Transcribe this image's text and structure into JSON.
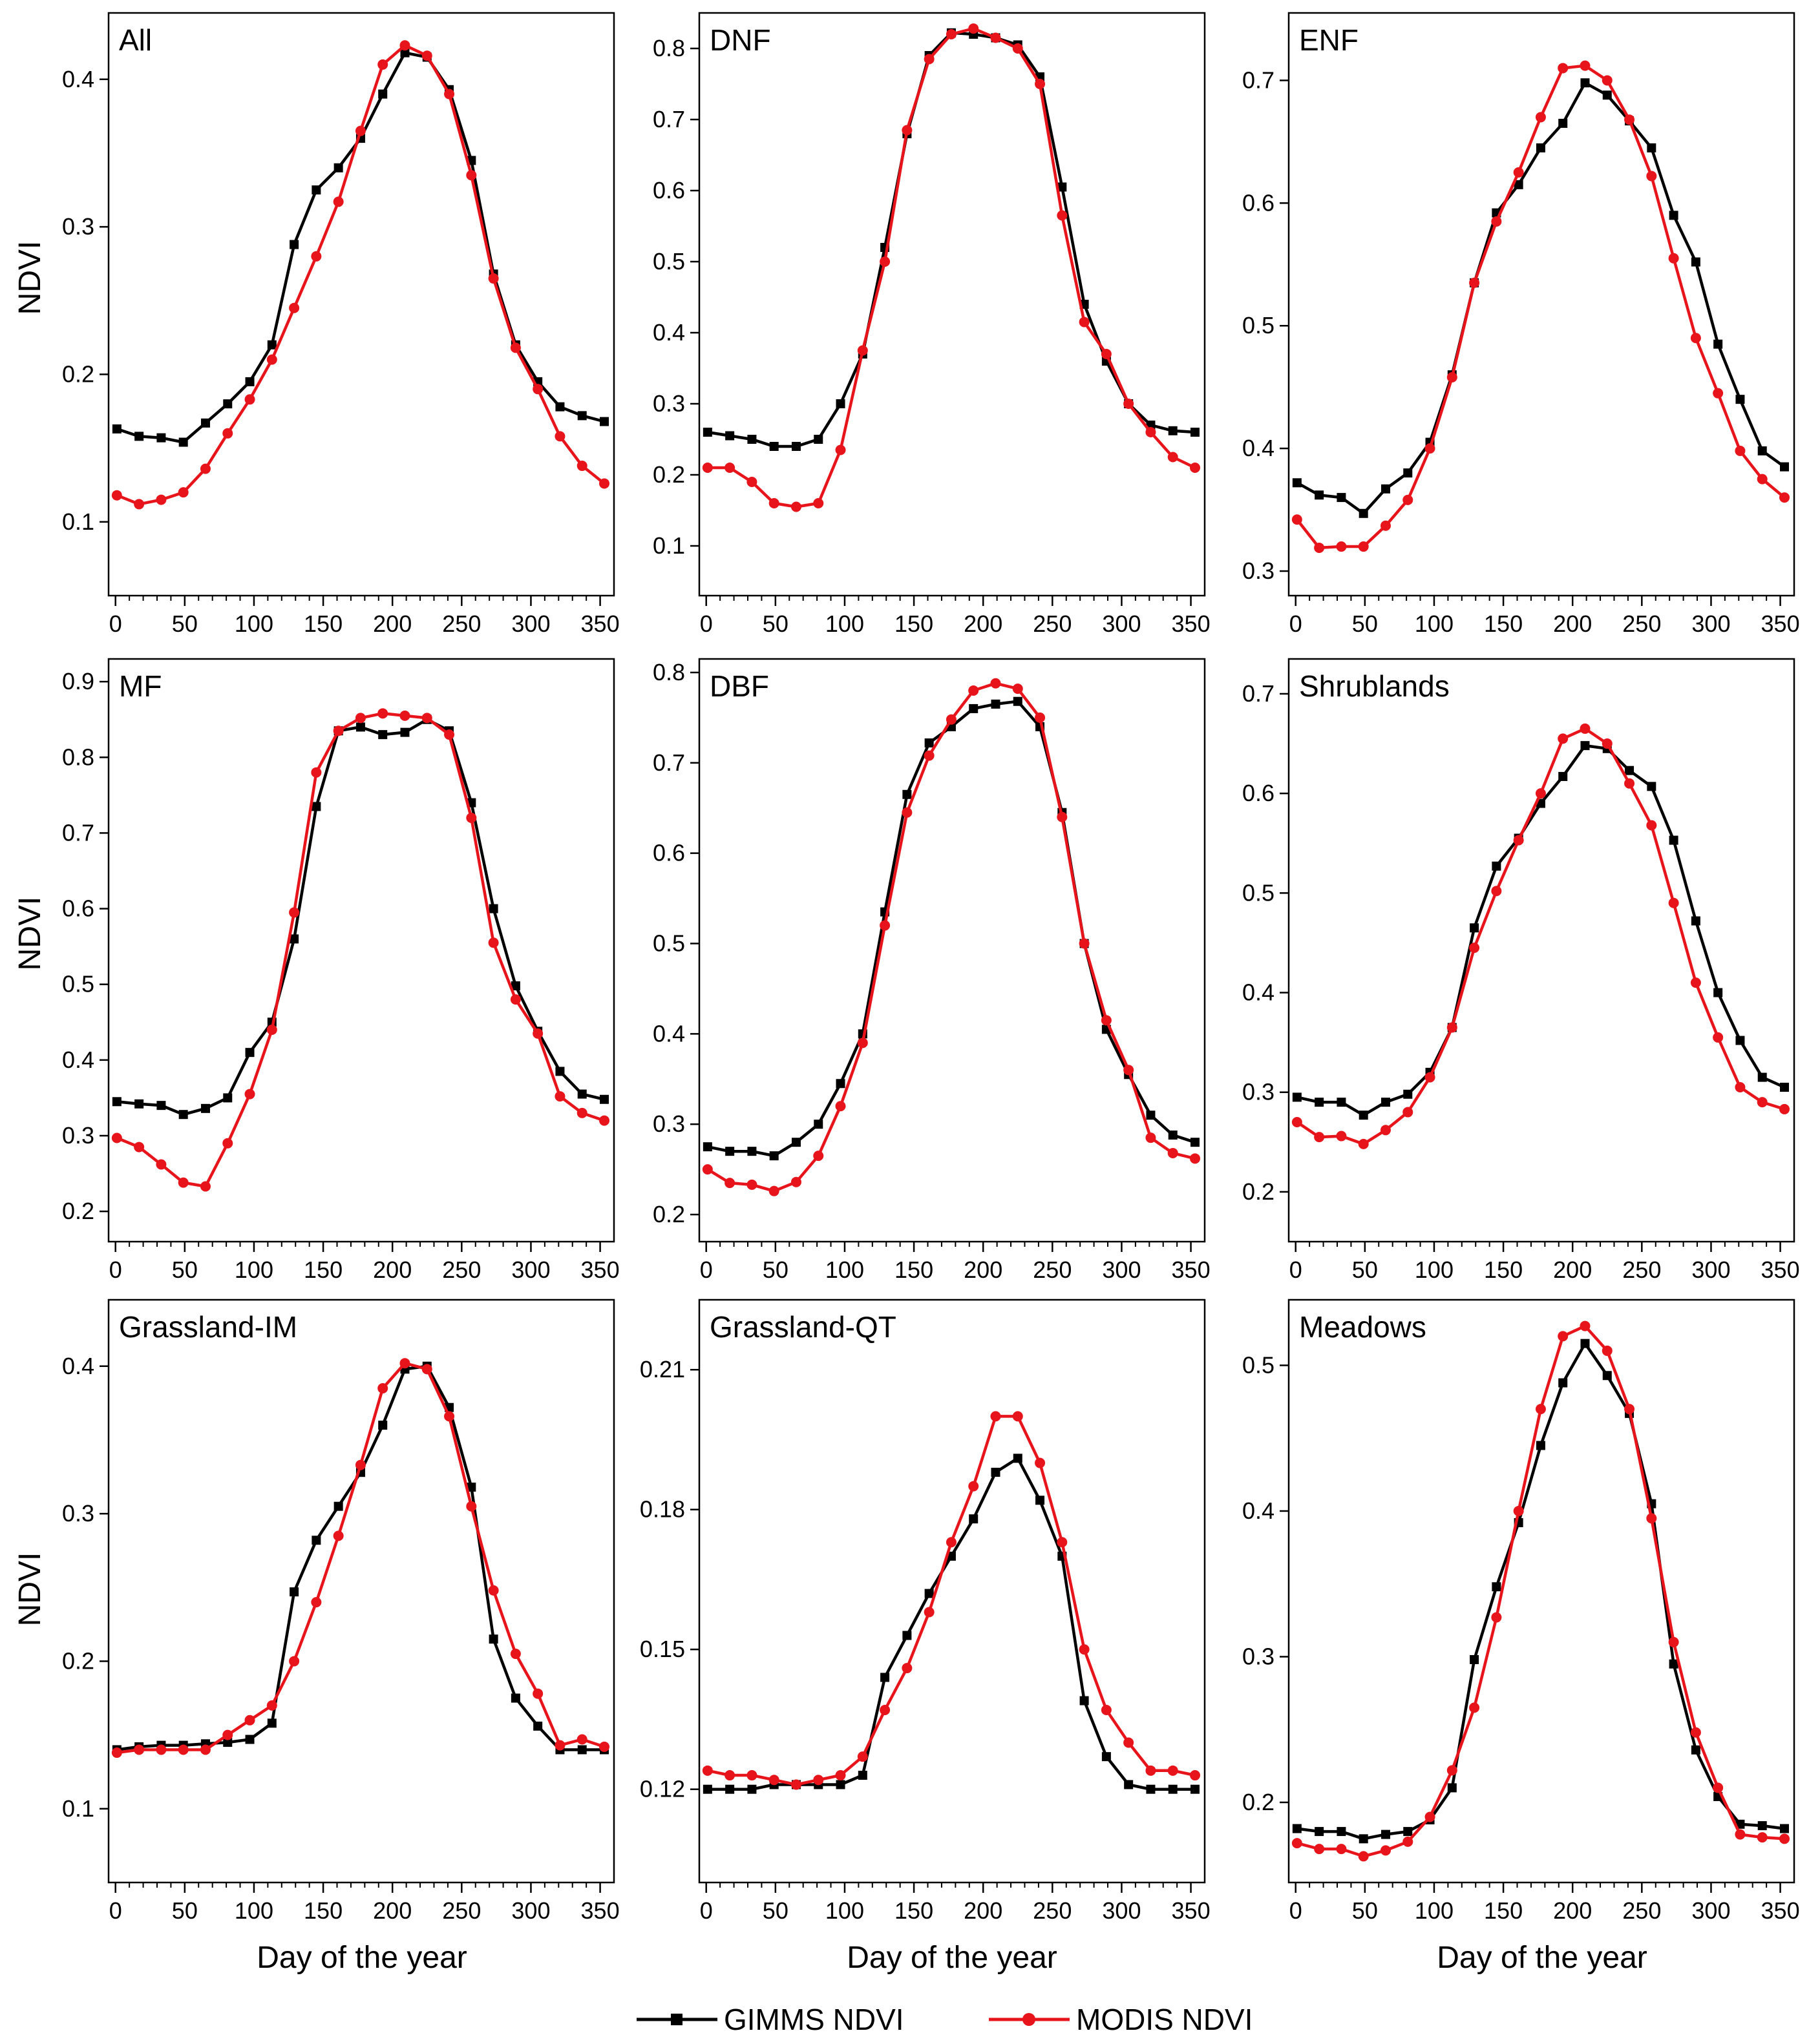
{
  "figure": {
    "x_axis_title": "Day of the year",
    "y_axis_title": "NDVI",
    "legend": [
      {
        "name": "GIMMS NDVI",
        "color": "#000000",
        "marker": "square"
      },
      {
        "name": "MODIS NDVI",
        "color": "#e8141b",
        "marker": "circle"
      }
    ]
  },
  "chart_data": [
    {
      "type": "line",
      "title": "All",
      "xlabel": "",
      "ylabel": "NDVI",
      "xlim": [
        -5,
        360
      ],
      "ylim": [
        0.05,
        0.445
      ],
      "xticks": [
        0,
        50,
        100,
        150,
        200,
        250,
        300,
        350
      ],
      "yticks": [
        0.1,
        0.2,
        0.3,
        0.4
      ],
      "ytick_labels": [
        "0.1",
        "0.2",
        "0.3",
        "0.4"
      ],
      "x": [
        1,
        17,
        33,
        49,
        65,
        81,
        97,
        113,
        129,
        145,
        161,
        177,
        193,
        209,
        225,
        241,
        257,
        273,
        289,
        305,
        321,
        337,
        353
      ],
      "series": [
        {
          "name": "GIMMS NDVI",
          "values": [
            0.163,
            0.158,
            0.157,
            0.154,
            0.167,
            0.18,
            0.195,
            0.22,
            0.288,
            0.325,
            0.34,
            0.36,
            0.39,
            0.418,
            0.415,
            0.393,
            0.345,
            0.268,
            0.22,
            0.195,
            0.178,
            0.172,
            0.168
          ]
        },
        {
          "name": "MODIS NDVI",
          "values": [
            0.118,
            0.112,
            0.115,
            0.12,
            0.136,
            0.16,
            0.183,
            0.21,
            0.245,
            0.28,
            0.317,
            0.365,
            0.41,
            0.423,
            0.416,
            0.39,
            0.335,
            0.265,
            0.218,
            0.19,
            0.158,
            0.138,
            0.126
          ]
        }
      ]
    },
    {
      "type": "line",
      "title": "DNF",
      "xlabel": "",
      "ylabel": "",
      "xlim": [
        -5,
        360
      ],
      "ylim": [
        0.03,
        0.85
      ],
      "xticks": [
        0,
        50,
        100,
        150,
        200,
        250,
        300,
        350
      ],
      "yticks": [
        0.1,
        0.2,
        0.3,
        0.4,
        0.5,
        0.6,
        0.7,
        0.8
      ],
      "ytick_labels": [
        "0.1",
        "0.2",
        "0.3",
        "0.4",
        "0.5",
        "0.6",
        "0.7",
        "0.8"
      ],
      "x": [
        1,
        17,
        33,
        49,
        65,
        81,
        97,
        113,
        129,
        145,
        161,
        177,
        193,
        209,
        225,
        241,
        257,
        273,
        289,
        305,
        321,
        337,
        353
      ],
      "series": [
        {
          "name": "GIMMS NDVI",
          "values": [
            0.26,
            0.255,
            0.25,
            0.24,
            0.24,
            0.25,
            0.3,
            0.37,
            0.52,
            0.68,
            0.79,
            0.822,
            0.82,
            0.815,
            0.805,
            0.76,
            0.605,
            0.44,
            0.36,
            0.3,
            0.27,
            0.262,
            0.26
          ]
        },
        {
          "name": "MODIS NDVI",
          "values": [
            0.21,
            0.21,
            0.19,
            0.16,
            0.155,
            0.16,
            0.235,
            0.375,
            0.5,
            0.685,
            0.785,
            0.82,
            0.828,
            0.815,
            0.8,
            0.75,
            0.565,
            0.415,
            0.37,
            0.3,
            0.26,
            0.225,
            0.21
          ]
        }
      ]
    },
    {
      "type": "line",
      "title": "ENF",
      "xlabel": "",
      "ylabel": "",
      "xlim": [
        -5,
        360
      ],
      "ylim": [
        0.28,
        0.755
      ],
      "xticks": [
        0,
        50,
        100,
        150,
        200,
        250,
        300,
        350
      ],
      "yticks": [
        0.3,
        0.4,
        0.5,
        0.6,
        0.7
      ],
      "ytick_labels": [
        "0.3",
        "0.4",
        "0.5",
        "0.6",
        "0.7"
      ],
      "x": [
        1,
        17,
        33,
        49,
        65,
        81,
        97,
        113,
        129,
        145,
        161,
        177,
        193,
        209,
        225,
        241,
        257,
        273,
        289,
        305,
        321,
        337,
        353
      ],
      "series": [
        {
          "name": "GIMMS NDVI",
          "values": [
            0.372,
            0.362,
            0.36,
            0.347,
            0.367,
            0.38,
            0.405,
            0.46,
            0.535,
            0.592,
            0.615,
            0.645,
            0.665,
            0.698,
            0.688,
            0.667,
            0.645,
            0.59,
            0.552,
            0.485,
            0.44,
            0.398,
            0.385
          ]
        },
        {
          "name": "MODIS NDVI",
          "values": [
            0.342,
            0.319,
            0.32,
            0.32,
            0.337,
            0.358,
            0.4,
            0.458,
            0.535,
            0.585,
            0.625,
            0.67,
            0.71,
            0.712,
            0.7,
            0.668,
            0.622,
            0.555,
            0.49,
            0.445,
            0.398,
            0.375,
            0.36
          ]
        }
      ]
    },
    {
      "type": "line",
      "title": "MF",
      "xlabel": "",
      "ylabel": "NDVI",
      "xlim": [
        -5,
        360
      ],
      "ylim": [
        0.16,
        0.93
      ],
      "xticks": [
        0,
        50,
        100,
        150,
        200,
        250,
        300,
        350
      ],
      "yticks": [
        0.2,
        0.3,
        0.4,
        0.5,
        0.6,
        0.7,
        0.8,
        0.9
      ],
      "ytick_labels": [
        "0.2",
        "0.3",
        "0.4",
        "0.5",
        "0.6",
        "0.7",
        "0.8",
        "0.9"
      ],
      "x": [
        1,
        17,
        33,
        49,
        65,
        81,
        97,
        113,
        129,
        145,
        161,
        177,
        193,
        209,
        225,
        241,
        257,
        273,
        289,
        305,
        321,
        337,
        353
      ],
      "series": [
        {
          "name": "GIMMS NDVI",
          "values": [
            0.345,
            0.342,
            0.34,
            0.328,
            0.336,
            0.35,
            0.41,
            0.45,
            0.56,
            0.735,
            0.835,
            0.84,
            0.83,
            0.833,
            0.85,
            0.835,
            0.74,
            0.6,
            0.498,
            0.438,
            0.385,
            0.355,
            0.348
          ]
        },
        {
          "name": "MODIS NDVI",
          "values": [
            0.297,
            0.285,
            0.262,
            0.238,
            0.233,
            0.29,
            0.355,
            0.44,
            0.595,
            0.78,
            0.835,
            0.852,
            0.858,
            0.855,
            0.852,
            0.83,
            0.72,
            0.555,
            0.48,
            0.435,
            0.352,
            0.33,
            0.32
          ]
        }
      ]
    },
    {
      "type": "line",
      "title": "DBF",
      "xlabel": "",
      "ylabel": "",
      "xlim": [
        -5,
        360
      ],
      "ylim": [
        0.17,
        0.815
      ],
      "xticks": [
        0,
        50,
        100,
        150,
        200,
        250,
        300,
        350
      ],
      "yticks": [
        0.2,
        0.3,
        0.4,
        0.5,
        0.6,
        0.7,
        0.8
      ],
      "ytick_labels": [
        "0.2",
        "0.3",
        "0.4",
        "0.5",
        "0.6",
        "0.7",
        "0.8"
      ],
      "x": [
        1,
        17,
        33,
        49,
        65,
        81,
        97,
        113,
        129,
        145,
        161,
        177,
        193,
        209,
        225,
        241,
        257,
        273,
        289,
        305,
        321,
        337,
        353
      ],
      "series": [
        {
          "name": "GIMMS NDVI",
          "values": [
            0.275,
            0.27,
            0.27,
            0.265,
            0.28,
            0.3,
            0.345,
            0.4,
            0.535,
            0.665,
            0.722,
            0.74,
            0.76,
            0.765,
            0.768,
            0.74,
            0.645,
            0.5,
            0.405,
            0.355,
            0.31,
            0.288,
            0.28
          ]
        },
        {
          "name": "MODIS NDVI",
          "values": [
            0.25,
            0.235,
            0.233,
            0.226,
            0.236,
            0.265,
            0.32,
            0.39,
            0.52,
            0.645,
            0.708,
            0.748,
            0.78,
            0.788,
            0.782,
            0.75,
            0.64,
            0.5,
            0.415,
            0.36,
            0.285,
            0.268,
            0.262
          ]
        }
      ]
    },
    {
      "type": "line",
      "title": "Shrublands",
      "xlabel": "",
      "ylabel": "",
      "xlim": [
        -5,
        360
      ],
      "ylim": [
        0.15,
        0.735
      ],
      "xticks": [
        0,
        50,
        100,
        150,
        200,
        250,
        300,
        350
      ],
      "yticks": [
        0.2,
        0.3,
        0.4,
        0.5,
        0.6,
        0.7
      ],
      "ytick_labels": [
        "0.2",
        "0.3",
        "0.4",
        "0.5",
        "0.6",
        "0.7"
      ],
      "x": [
        1,
        17,
        33,
        49,
        65,
        81,
        97,
        113,
        129,
        145,
        161,
        177,
        193,
        209,
        225,
        241,
        257,
        273,
        289,
        305,
        321,
        337,
        353
      ],
      "series": [
        {
          "name": "GIMMS NDVI",
          "values": [
            0.295,
            0.29,
            0.29,
            0.277,
            0.29,
            0.298,
            0.32,
            0.365,
            0.465,
            0.527,
            0.555,
            0.59,
            0.617,
            0.648,
            0.645,
            0.623,
            0.607,
            0.553,
            0.472,
            0.4,
            0.352,
            0.315,
            0.305
          ]
        },
        {
          "name": "MODIS NDVI",
          "values": [
            0.27,
            0.255,
            0.256,
            0.248,
            0.262,
            0.28,
            0.315,
            0.365,
            0.445,
            0.502,
            0.553,
            0.6,
            0.655,
            0.665,
            0.65,
            0.61,
            0.568,
            0.49,
            0.41,
            0.355,
            0.305,
            0.29,
            0.283
          ]
        }
      ]
    },
    {
      "type": "line",
      "title": "Grassland-IM",
      "xlabel": "Day of the year",
      "ylabel": "NDVI",
      "xlim": [
        -5,
        360
      ],
      "ylim": [
        0.05,
        0.445
      ],
      "xticks": [
        0,
        50,
        100,
        150,
        200,
        250,
        300,
        350
      ],
      "yticks": [
        0.1,
        0.2,
        0.3,
        0.4
      ],
      "ytick_labels": [
        "0.1",
        "0.2",
        "0.3",
        "0.4"
      ],
      "x": [
        1,
        17,
        33,
        49,
        65,
        81,
        97,
        113,
        129,
        145,
        161,
        177,
        193,
        209,
        225,
        241,
        257,
        273,
        289,
        305,
        321,
        337,
        353
      ],
      "series": [
        {
          "name": "GIMMS NDVI",
          "values": [
            0.14,
            0.142,
            0.143,
            0.143,
            0.144,
            0.145,
            0.147,
            0.158,
            0.247,
            0.282,
            0.305,
            0.328,
            0.36,
            0.398,
            0.4,
            0.372,
            0.318,
            0.215,
            0.175,
            0.156,
            0.14,
            0.14,
            0.14
          ]
        },
        {
          "name": "MODIS NDVI",
          "values": [
            0.138,
            0.14,
            0.14,
            0.14,
            0.14,
            0.15,
            0.16,
            0.17,
            0.2,
            0.24,
            0.285,
            0.333,
            0.385,
            0.402,
            0.398,
            0.366,
            0.305,
            0.248,
            0.205,
            0.178,
            0.143,
            0.147,
            0.142
          ]
        }
      ]
    },
    {
      "type": "line",
      "title": "Grassland-QT",
      "xlabel": "Day of the year",
      "ylabel": "",
      "xlim": [
        -5,
        360
      ],
      "ylim": [
        0.1,
        0.225
      ],
      "xticks": [
        0,
        50,
        100,
        150,
        200,
        250,
        300,
        350
      ],
      "yticks": [
        0.12,
        0.15,
        0.18,
        0.21
      ],
      "ytick_labels": [
        "0.12",
        "0.15",
        "0.18",
        "0.21"
      ],
      "x": [
        1,
        17,
        33,
        49,
        65,
        81,
        97,
        113,
        129,
        145,
        161,
        177,
        193,
        209,
        225,
        241,
        257,
        273,
        289,
        305,
        321,
        337,
        353
      ],
      "series": [
        {
          "name": "GIMMS NDVI",
          "values": [
            0.12,
            0.12,
            0.12,
            0.121,
            0.121,
            0.121,
            0.121,
            0.123,
            0.144,
            0.153,
            0.162,
            0.17,
            0.178,
            0.188,
            0.191,
            0.182,
            0.17,
            0.139,
            0.127,
            0.121,
            0.12,
            0.12,
            0.12
          ]
        },
        {
          "name": "MODIS NDVI",
          "values": [
            0.124,
            0.123,
            0.123,
            0.122,
            0.121,
            0.122,
            0.123,
            0.127,
            0.137,
            0.146,
            0.158,
            0.173,
            0.185,
            0.2,
            0.2,
            0.19,
            0.173,
            0.15,
            0.137,
            0.13,
            0.124,
            0.124,
            0.123
          ]
        }
      ]
    },
    {
      "type": "line",
      "title": "Meadows",
      "xlabel": "Day of the year",
      "ylabel": "",
      "xlim": [
        -5,
        360
      ],
      "ylim": [
        0.145,
        0.545
      ],
      "xticks": [
        0,
        50,
        100,
        150,
        200,
        250,
        300,
        350
      ],
      "yticks": [
        0.2,
        0.3,
        0.4,
        0.5
      ],
      "ytick_labels": [
        "0.2",
        "0.3",
        "0.4",
        "0.5"
      ],
      "x": [
        1,
        17,
        33,
        49,
        65,
        81,
        97,
        113,
        129,
        145,
        161,
        177,
        193,
        209,
        225,
        241,
        257,
        273,
        289,
        305,
        321,
        337,
        353
      ],
      "series": [
        {
          "name": "GIMMS NDVI",
          "values": [
            0.182,
            0.18,
            0.18,
            0.175,
            0.178,
            0.18,
            0.188,
            0.21,
            0.298,
            0.348,
            0.392,
            0.445,
            0.488,
            0.515,
            0.493,
            0.467,
            0.405,
            0.295,
            0.236,
            0.204,
            0.185,
            0.184,
            0.182
          ]
        },
        {
          "name": "MODIS NDVI",
          "values": [
            0.172,
            0.168,
            0.168,
            0.163,
            0.167,
            0.173,
            0.19,
            0.222,
            0.265,
            0.327,
            0.4,
            0.47,
            0.52,
            0.527,
            0.51,
            0.47,
            0.395,
            0.31,
            0.248,
            0.21,
            0.178,
            0.176,
            0.175
          ]
        }
      ]
    }
  ]
}
